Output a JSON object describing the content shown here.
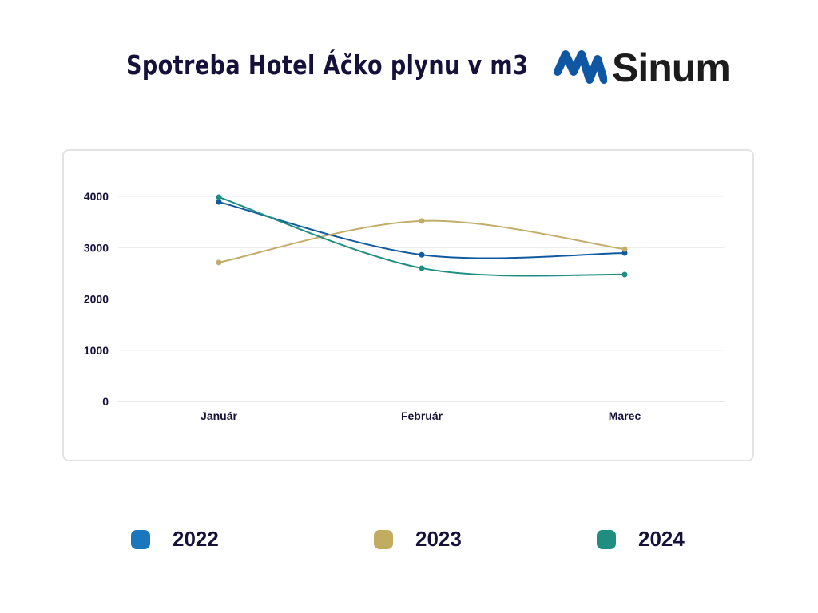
{
  "header": {
    "title": "Spotreba Hotel Áčko plynu v m3",
    "logo_text": "Sinum"
  },
  "chart_data": {
    "type": "line",
    "title": "Spotreba Hotel Áčko plynu v m3",
    "categories": [
      "Január",
      "Február",
      "Marec"
    ],
    "ylim": [
      0,
      4000
    ],
    "yticks": [
      0,
      1000,
      2000,
      3000,
      4000
    ],
    "grid": true,
    "legend_position": "bottom",
    "series": [
      {
        "name": "2022",
        "color": "#0f5b9e",
        "legend_color": "#1a76bd",
        "values": [
          3890,
          2860,
          2895
        ]
      },
      {
        "name": "2023",
        "color": "#c2ad6b",
        "legend_color": "#c1ac62",
        "values": [
          2710,
          3520,
          2970
        ]
      },
      {
        "name": "2024",
        "color": "#1f8e80",
        "legend_color": "#1f8e80",
        "values": [
          3985,
          2600,
          2475
        ]
      }
    ]
  }
}
